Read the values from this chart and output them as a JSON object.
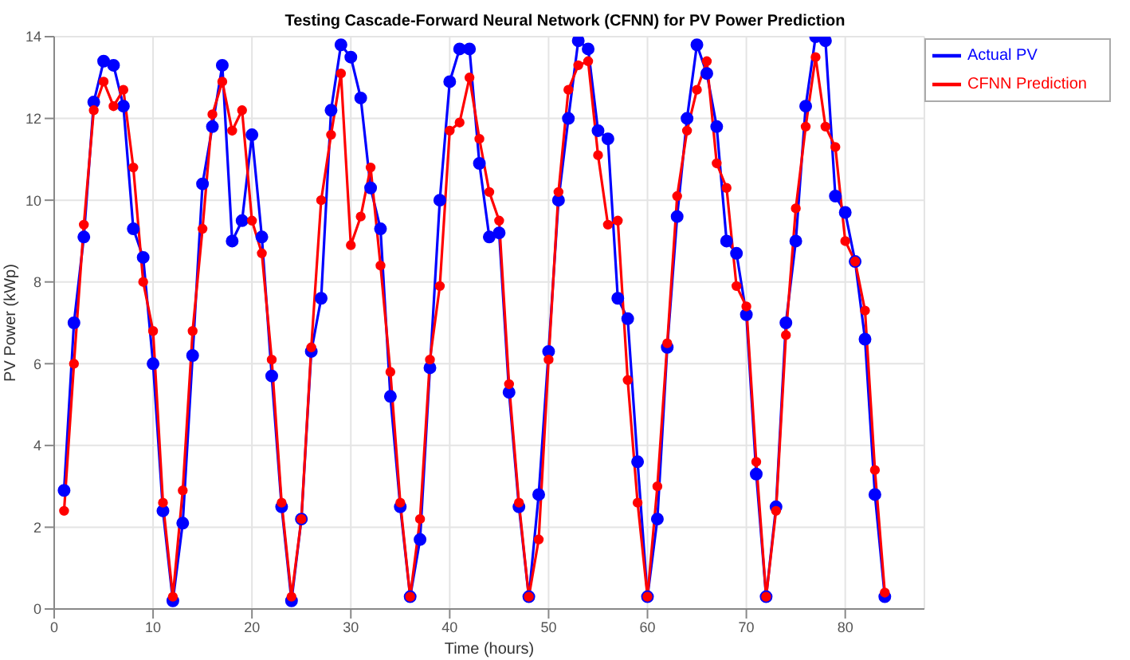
{
  "chart_data": {
    "type": "line",
    "title": "Testing Cascade-Forward Neural Network (CFNN) for PV Power Prediction",
    "xlabel": "Time (hours)",
    "ylabel": "PV Power (kWp)",
    "x": [
      1,
      2,
      3,
      4,
      5,
      6,
      7,
      8,
      9,
      10,
      11,
      12,
      13,
      14,
      15,
      16,
      17,
      18,
      19,
      20,
      21,
      22,
      23,
      24,
      25,
      26,
      27,
      28,
      29,
      30,
      31,
      32,
      33,
      34,
      35,
      36,
      37,
      38,
      39,
      40,
      41,
      42,
      43,
      44,
      45,
      46,
      47,
      48,
      49,
      50,
      51,
      52,
      53,
      54,
      55,
      56,
      57,
      58,
      59,
      60,
      61,
      62,
      63,
      64,
      65,
      66,
      67,
      68,
      69,
      70,
      71,
      72,
      73,
      74,
      75,
      76,
      77,
      78,
      79,
      80,
      81,
      82,
      83,
      84
    ],
    "series": [
      {
        "name": "Actual PV",
        "color": "#0000ff",
        "values": [
          2.9,
          7.0,
          9.1,
          12.4,
          13.4,
          13.3,
          12.3,
          9.3,
          8.6,
          6.0,
          2.4,
          0.2,
          2.1,
          6.2,
          10.4,
          11.8,
          13.3,
          9.0,
          9.5,
          11.6,
          9.1,
          5.7,
          2.5,
          0.2,
          2.2,
          6.3,
          7.6,
          12.2,
          13.8,
          13.5,
          12.5,
          10.3,
          9.3,
          5.2,
          2.5,
          0.3,
          1.7,
          5.9,
          10.0,
          12.9,
          13.7,
          13.7,
          10.9,
          9.1,
          9.2,
          5.3,
          2.5,
          0.3,
          2.8,
          6.3,
          10.0,
          12.0,
          13.9,
          13.7,
          11.7,
          11.5,
          7.6,
          7.1,
          3.6,
          0.3,
          2.2,
          6.4,
          9.6,
          12.0,
          13.8,
          13.1,
          11.8,
          9.0,
          8.7,
          7.2,
          3.3,
          0.3,
          2.5,
          7.0,
          9.0,
          12.3,
          14.0,
          13.9,
          10.1,
          9.7,
          8.5,
          6.6,
          2.8,
          0.3
        ]
      },
      {
        "name": "CFNN Prediction",
        "color": "#ff0000",
        "values": [
          2.4,
          6.0,
          9.4,
          12.2,
          12.9,
          12.3,
          12.7,
          10.8,
          8.0,
          6.8,
          2.6,
          0.3,
          2.9,
          6.8,
          9.3,
          12.1,
          12.9,
          11.7,
          12.2,
          9.5,
          8.7,
          6.1,
          2.6,
          0.3,
          2.2,
          6.4,
          10.0,
          11.6,
          13.1,
          8.9,
          9.6,
          10.8,
          8.4,
          5.8,
          2.6,
          0.3,
          2.2,
          6.1,
          7.9,
          11.7,
          11.9,
          13.0,
          11.5,
          10.2,
          9.5,
          5.5,
          2.6,
          0.3,
          1.7,
          6.1,
          10.2,
          12.7,
          13.3,
          13.4,
          11.1,
          9.4,
          9.5,
          5.6,
          2.6,
          0.3,
          3.0,
          6.5,
          10.1,
          11.7,
          12.7,
          13.4,
          10.9,
          10.3,
          7.9,
          7.4,
          3.6,
          0.3,
          2.4,
          6.7,
          9.8,
          11.8,
          13.5,
          11.8,
          11.3,
          9.0,
          8.5,
          7.3,
          3.4,
          0.4
        ]
      }
    ],
    "xlim": [
      0,
      88
    ],
    "xticks": [
      0,
      10,
      20,
      30,
      40,
      50,
      60,
      70,
      80
    ],
    "ylim": [
      0,
      14
    ],
    "yticks": [
      0,
      2,
      4,
      6,
      8,
      10,
      12,
      14
    ],
    "grid": true,
    "legend": "top right",
    "marker": "circle",
    "line_style": "solid"
  }
}
